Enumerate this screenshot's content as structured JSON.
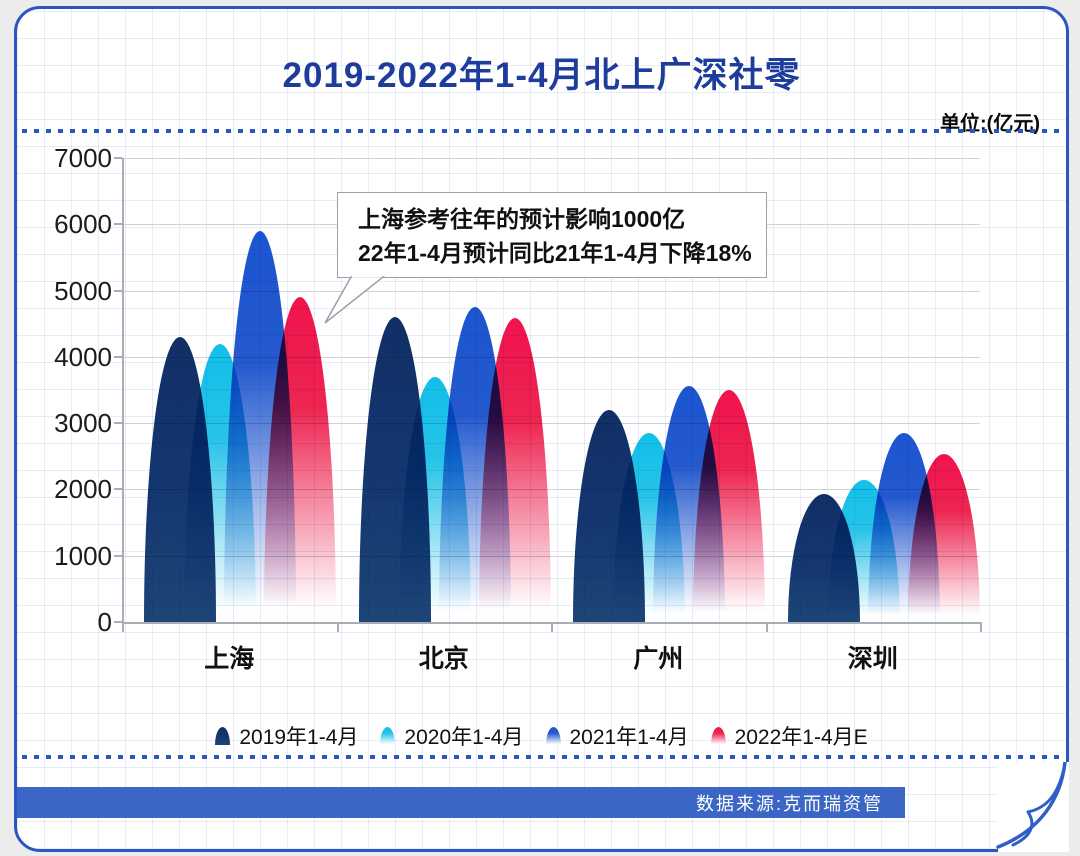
{
  "header": {
    "title": "2019-2022年1-4月北上广深社零",
    "unit_label": "单位:(亿元)"
  },
  "annotation": {
    "line1": "上海参考往年的预计影响1000亿",
    "line2": "22年1-4月预计同比21年1-4月下降18%"
  },
  "footer": {
    "source_label": "数据来源:克而瑞资管"
  },
  "colors": {
    "accent_border": "#2B55C1",
    "title_text": "#1E3C9B",
    "source_band": "#3B66C5",
    "series_2019": "#14346C",
    "series_2020": "#15C1EB",
    "series_2021": "#1F57CE",
    "series_2022": "#EF1450"
  },
  "chart_data": {
    "type": "bar",
    "title": "2019-2022年1-4月北上广深社零",
    "unit": "亿元",
    "categories": [
      "上海",
      "北京",
      "广州",
      "深圳"
    ],
    "series": [
      {
        "name": "2019年1-4月",
        "color": "#14346C",
        "values": [
          4300,
          4600,
          3200,
          1930
        ]
      },
      {
        "name": "2020年1-4月",
        "color": "#15C1EB",
        "values": [
          4200,
          3700,
          2850,
          2140
        ]
      },
      {
        "name": "2021年1-4月",
        "color": "#1F57CE",
        "values": [
          5900,
          4750,
          3560,
          2850
        ]
      },
      {
        "name": "2022年1-4月E",
        "color": "#EF1450",
        "values": [
          4900,
          4580,
          3500,
          2530
        ]
      }
    ],
    "ylim": [
      0,
      7000
    ],
    "yticks": [
      0,
      1000,
      2000,
      3000,
      4000,
      5000,
      6000,
      7000
    ],
    "ylabel": "",
    "xlabel": "",
    "grid": true,
    "legend_position": "bottom",
    "bar_style": "rounded-dome-gradient-overlap"
  }
}
